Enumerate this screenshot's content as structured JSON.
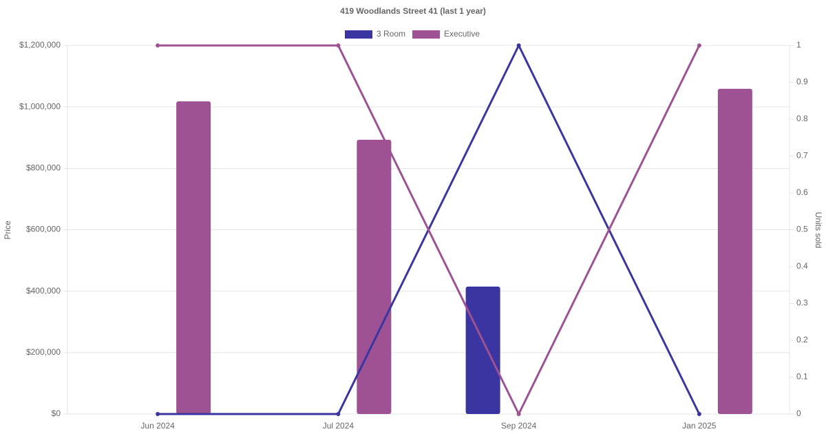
{
  "chart_data": {
    "type": "bar-line",
    "title": "419 Woodlands Street 41 (last 1 year)",
    "y_label": "Price",
    "y2_label": "Units sold",
    "categories": [
      "Jun 2024",
      "Jul 2024",
      "Sep 2024",
      "Jan 2025"
    ],
    "series": [
      {
        "name": "3 Room",
        "color": "#3a35a0",
        "values": [
          null,
          null,
          415000,
          null
        ],
        "units_sold": [
          0,
          0,
          1,
          0
        ]
      },
      {
        "name": "Executive",
        "color": "#9e5293",
        "values": [
          1018000,
          893000,
          null,
          1059000
        ],
        "units_sold": [
          1,
          1,
          0,
          1
        ]
      }
    ],
    "ylim": [
      0,
      1200000
    ],
    "yticks": [
      {
        "value": 0,
        "label": "$0"
      },
      {
        "value": 200000,
        "label": "$200,000"
      },
      {
        "value": 400000,
        "label": "$400,000"
      },
      {
        "value": 600000,
        "label": "$600,000"
      },
      {
        "value": 800000,
        "label": "$800,000"
      },
      {
        "value": 1000000,
        "label": "$1,000,000"
      },
      {
        "value": 1200000,
        "label": "$1,200,000"
      }
    ],
    "y2lim": [
      0,
      1
    ],
    "y2ticks": [
      0,
      0.1,
      0.2,
      0.3,
      0.4,
      0.5,
      0.6,
      0.7,
      0.8,
      0.9,
      1
    ],
    "grid": true
  }
}
